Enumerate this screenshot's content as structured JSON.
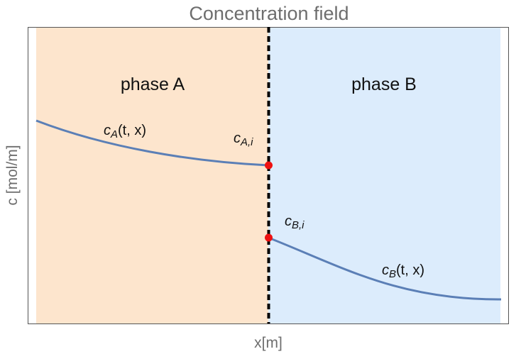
{
  "title": "Concentration field",
  "x_axis_label": "x[m]",
  "y_axis_label": "c [mol/m]",
  "phase_a": {
    "label": "phase A",
    "fill_color": "#fde5cd"
  },
  "phase_b": {
    "label": "phase B",
    "fill_color": "#dcecfc"
  },
  "interface": {
    "color": "#000000"
  },
  "curve_color": "#5b7fb6",
  "marker_color": "#ee1111",
  "curve_a_label": {
    "symbol": "c",
    "subscript": "A",
    "args": "(t, x)"
  },
  "curve_b_label": {
    "symbol": "c",
    "subscript": "B",
    "args": "(t, x)"
  },
  "interface_a_label": {
    "symbol": "c",
    "subscript": "A,i"
  },
  "interface_b_label": {
    "symbol": "c",
    "subscript": "B,i"
  }
}
